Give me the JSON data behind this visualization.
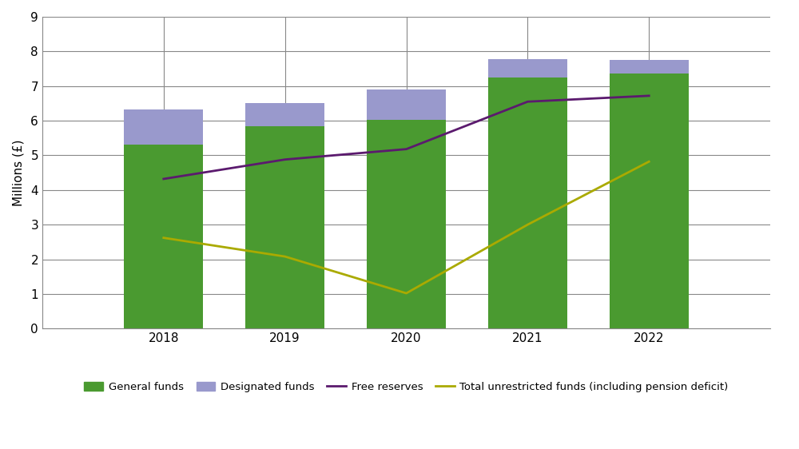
{
  "years": [
    2018,
    2019,
    2020,
    2021,
    2022
  ],
  "general_funds": [
    5.3,
    5.84,
    6.02,
    7.25,
    7.37
  ],
  "designated_funds": [
    1.02,
    0.68,
    0.88,
    0.52,
    0.38
  ],
  "free_reserves": [
    4.32,
    4.88,
    5.18,
    6.55,
    6.72
  ],
  "total_unrestricted": [
    2.62,
    2.08,
    1.02,
    3.0,
    4.82
  ],
  "general_funds_color": "#4a9a30",
  "designated_funds_color": "#9999cc",
  "free_reserves_color": "#5b1a6e",
  "total_unrestricted_color": "#aaaa00",
  "ylabel": "Millions (£)",
  "ylim": [
    0,
    9
  ],
  "yticks": [
    0,
    1,
    2,
    3,
    4,
    5,
    6,
    7,
    8,
    9
  ],
  "bar_width": 0.65,
  "background_color": "#ffffff",
  "grid_color": "#888888",
  "spine_color": "#888888",
  "legend_labels": [
    "General funds",
    "Designated funds",
    "Free reserves",
    "Total unrestricted funds (including pension deficit)"
  ],
  "xlim_left": 2017.0,
  "xlim_right": 2023.0
}
